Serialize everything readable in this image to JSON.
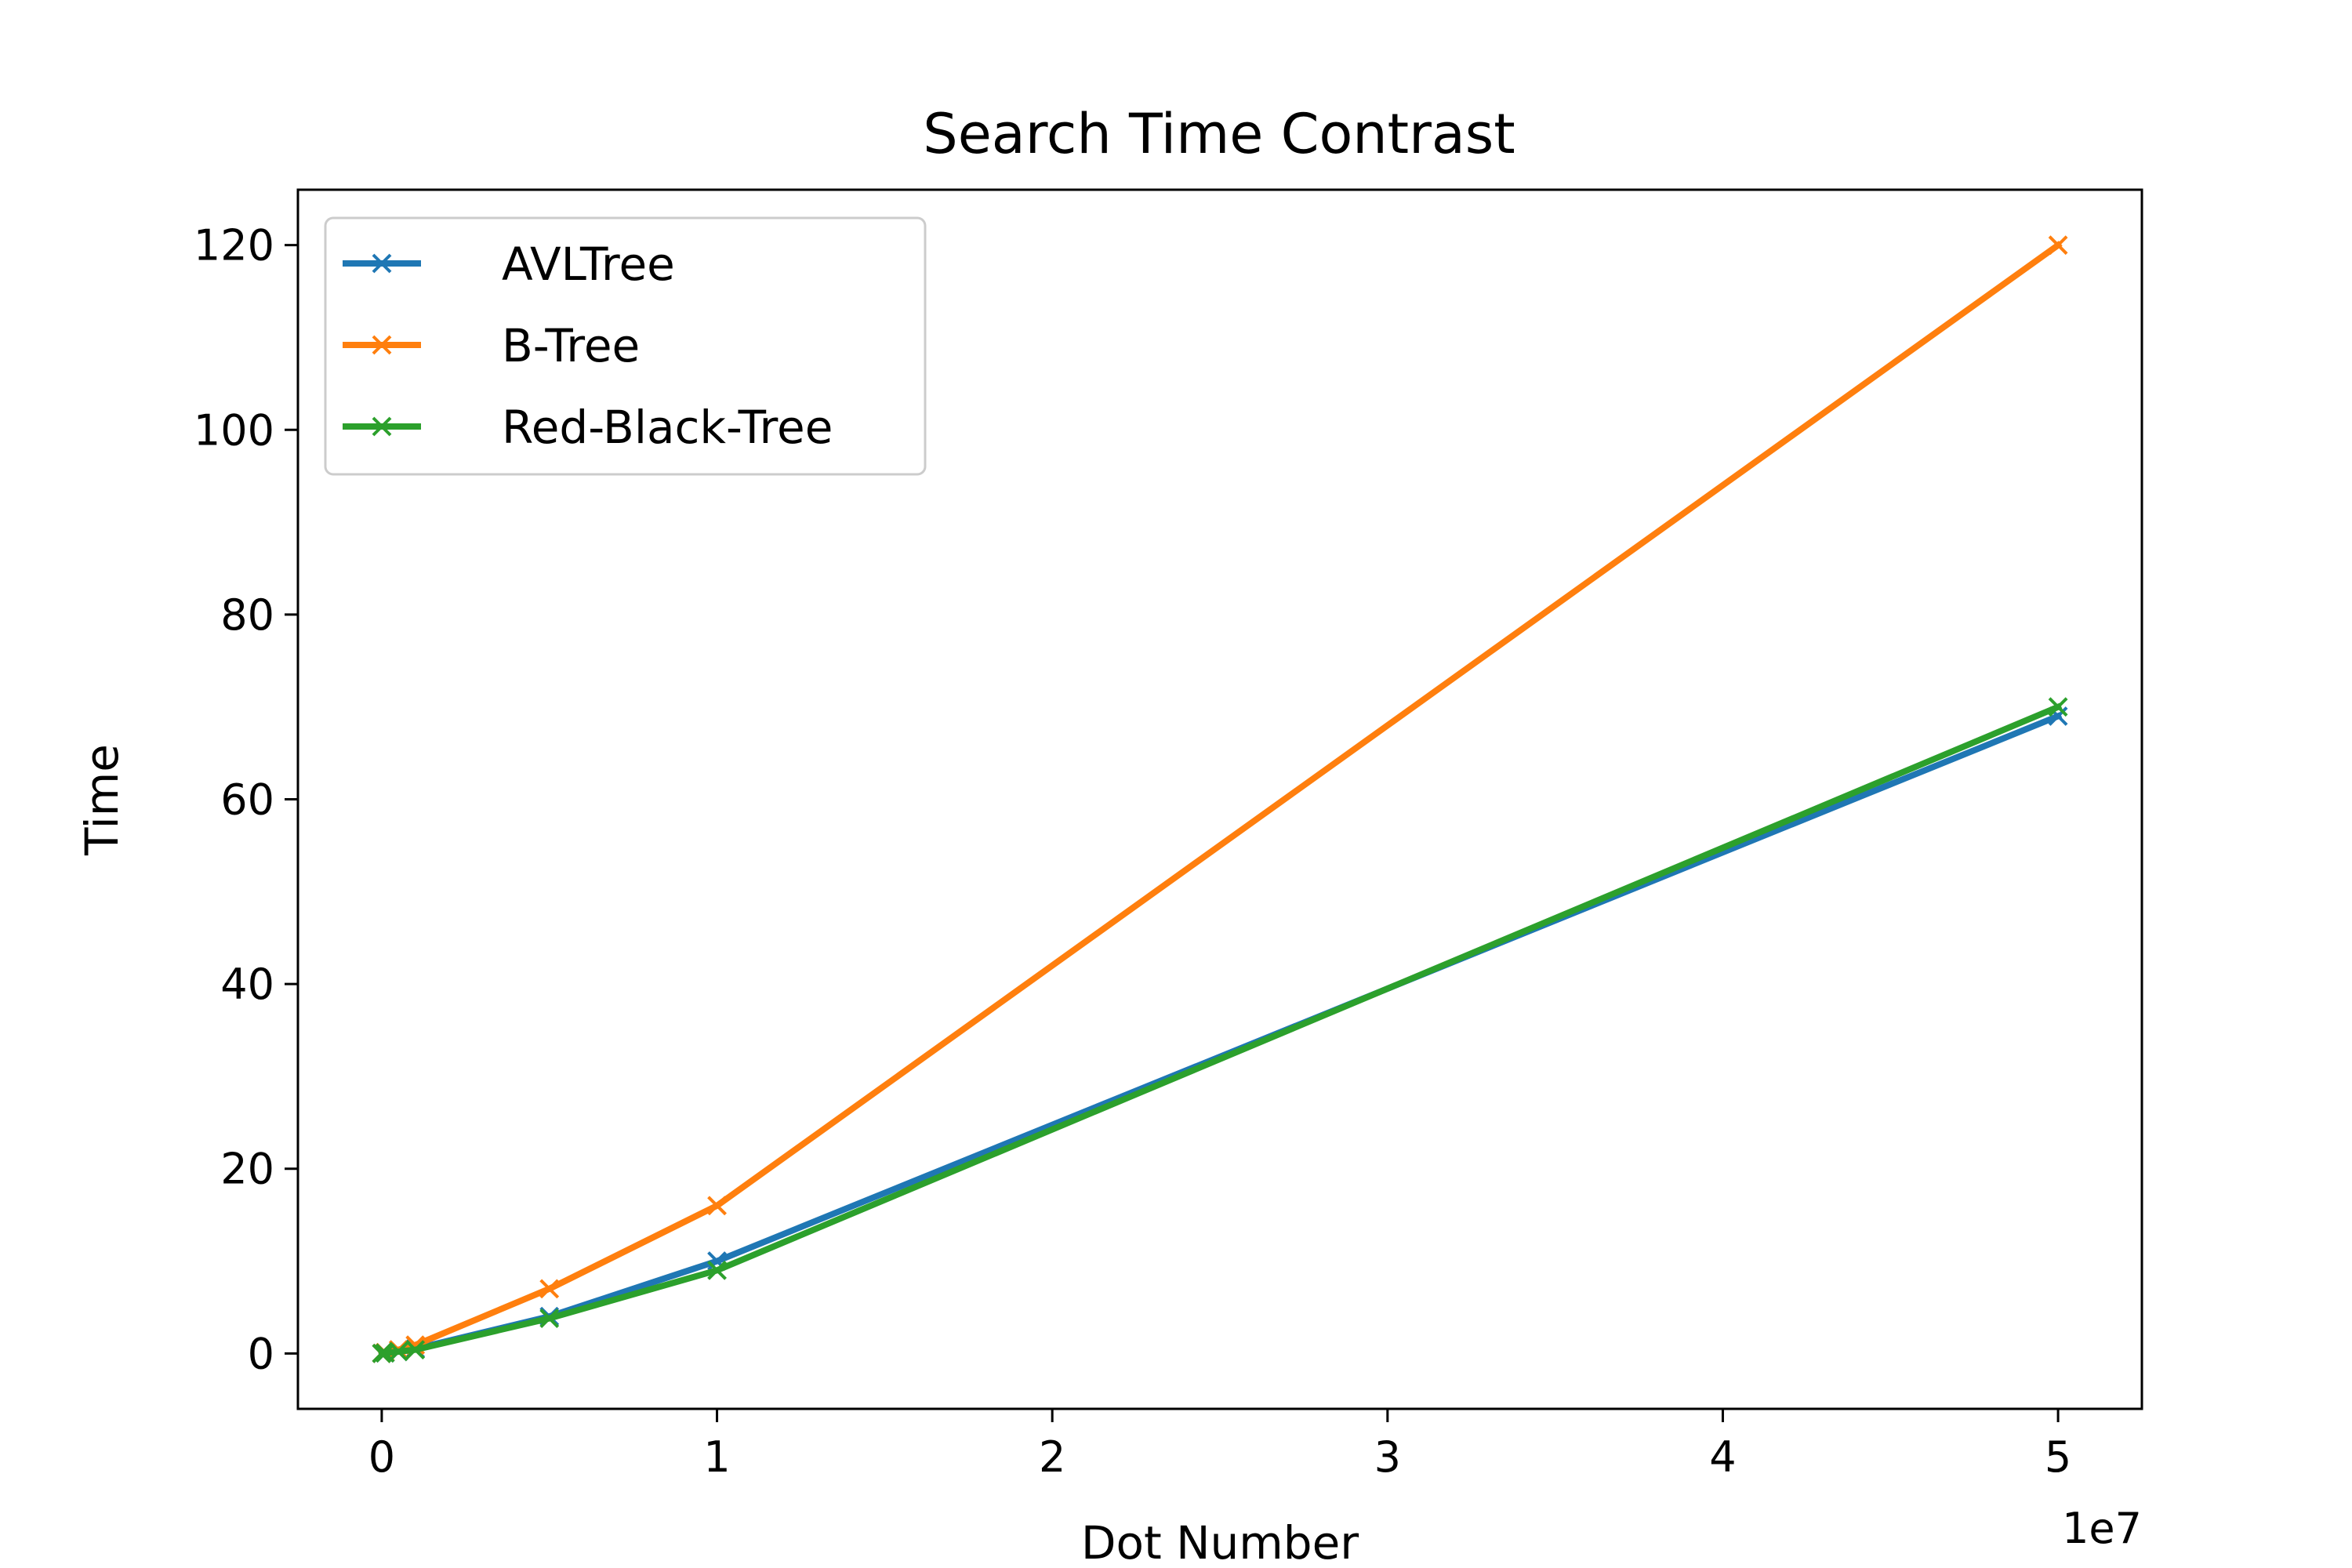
{
  "chart_data": {
    "type": "line",
    "title": "Search Time Contrast",
    "xlabel": "Dot Number",
    "ylabel": "Time",
    "x_offset_label": "1e7",
    "xlim": [
      -0.25,
      5.25
    ],
    "ylim": [
      -6,
      126
    ],
    "x_ticks": [
      0,
      1,
      2,
      3,
      4,
      5
    ],
    "x_tick_labels": [
      "0",
      "1",
      "2",
      "3",
      "4",
      "5"
    ],
    "y_ticks": [
      0,
      20,
      40,
      60,
      80,
      100,
      120
    ],
    "y_tick_labels": [
      "0",
      "20",
      "40",
      "60",
      "80",
      "100",
      "120"
    ],
    "grid": false,
    "legend_position": "top-left",
    "marker": "x",
    "series": [
      {
        "name": "AVLTree",
        "color": "#1f77b4",
        "x": [
          0,
          0.01,
          0.05,
          0.1,
          0.5,
          1,
          5
        ],
        "y": [
          0.0,
          0.05,
          0.2,
          0.5,
          4.0,
          10.0,
          69.0
        ]
      },
      {
        "name": "B-Tree",
        "color": "#ff7f0e",
        "x": [
          0,
          0.01,
          0.05,
          0.1,
          0.5,
          1,
          5
        ],
        "y": [
          0.0,
          0.1,
          0.4,
          0.9,
          7.0,
          16.0,
          120.0
        ]
      },
      {
        "name": "Red-Black-Tree",
        "color": "#2ca02c",
        "x": [
          0,
          0.01,
          0.05,
          0.1,
          0.5,
          1,
          5
        ],
        "y": [
          0.0,
          0.05,
          0.2,
          0.4,
          3.8,
          9.0,
          70.0
        ]
      }
    ]
  }
}
